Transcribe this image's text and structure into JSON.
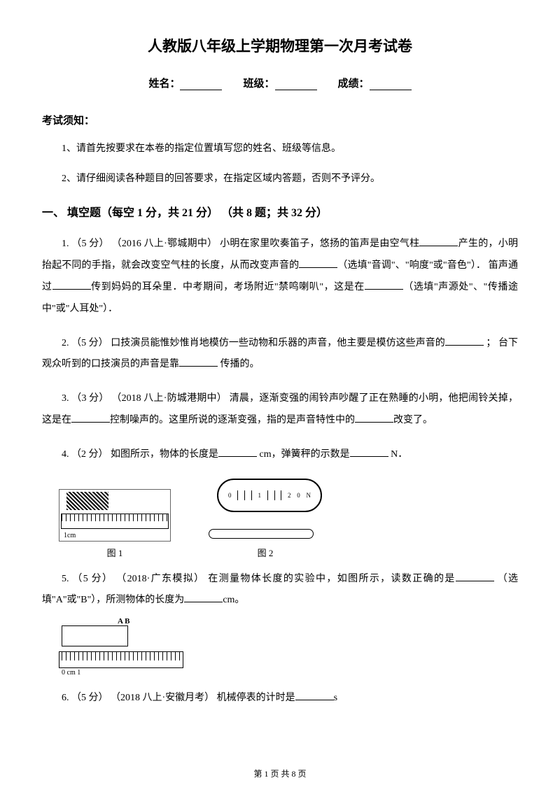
{
  "title": "人教版八年级上学期物理第一次月考试卷",
  "info": {
    "name_label": "姓名：",
    "class_label": "班级：",
    "score_label": "成绩："
  },
  "instructions_header": "考试须知：",
  "instructions": [
    "1、请首先按要求在本卷的指定位置填写您的姓名、班级等信息。",
    "2、请仔细阅读各种题目的回答要求，在指定区域内答题，否则不予评分。"
  ],
  "section_title": "一、 填空题（每空 1 分，共 21 分）  （共 8 题；共 32 分）",
  "questions": {
    "q1": {
      "prefix": "1.  （5 分） （2016 八上·鄂城期中） 小明在家里吹奏笛子，悠扬的笛声是由空气柱",
      "part2": "产生的，小明抬起不同的手指，就会改变空气柱的长度，从而改变声音的",
      "part3": "（选填\"音调\"、\"响度\"或\"音色\"）．  笛声通过",
      "part4": "传到妈妈的耳朵里．中考期间，考场附近\"禁鸣喇叭\"，这是在",
      "part5": "（选填\"声源处\"、\"传播途中\"或\"人耳处\"）．"
    },
    "q2": {
      "prefix": "2.  （5 分）  口技演员能惟妙惟肖地模仿一些动物和乐器的声音，他主要是模仿这些声音的",
      "part2": "  ； 台下观众听到的口技演员的声音是靠",
      "part3": " 传播的。"
    },
    "q3": {
      "prefix": "3.  （3 分） （2018 八上·防城港期中） 清晨，逐渐变强的闹铃声吵醒了正在熟睡的小明，他把闹铃关掉，这是在",
      "part2": "控制噪声的。这里所说的逐渐变强，指的是声音特性中的",
      "part3": "改变了。"
    },
    "q4": {
      "prefix": "4.  （2 分）  如图所示，物体的长度是",
      "part2": "  cm，弹簧秤的示数是",
      "part3": "  N．"
    },
    "fig1_caption": "图 1",
    "fig2_caption": "图 2",
    "ruler1_label": "1cm",
    "spring_numbers": [
      "1",
      "2",
      "0",
      "0",
      "N"
    ],
    "q5": {
      "prefix": "5.  （5 分） （2018·广东模拟） 在测量物体长度的实验中，如图所示，读数正确的是",
      "part2": " （选填\"A\"或\"B\"），所测物体的长度为",
      "part3": "cm。"
    },
    "ruler2_ab": "A  B",
    "ruler2_label": "0 cm  1",
    "q6": {
      "prefix": "6.  （5 分） （2018 八上·安徽月考） 机械停表的计时是",
      "part2": "s"
    }
  },
  "footer": {
    "text1": "第 ",
    "current": "1",
    "text2": " 页 共 ",
    "total": "8",
    "text3": " 页"
  }
}
